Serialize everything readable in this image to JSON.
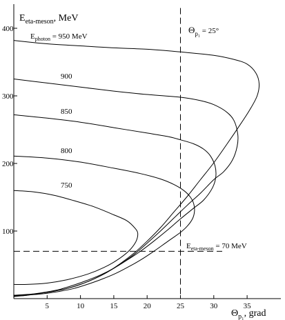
{
  "chart_data": {
    "type": "line",
    "title": {
      "main": "E",
      "sub": "eta-meson",
      "rest": ", MeV"
    },
    "xlabel": {
      "main": "Θ",
      "sub": "p₁",
      "rest": ", grad"
    },
    "xlim": [
      0,
      40
    ],
    "ylim": [
      0,
      430
    ],
    "xticks": [
      5,
      10,
      15,
      20,
      25,
      30,
      35
    ],
    "yticks": [
      100,
      200,
      300,
      400
    ],
    "grid": false,
    "series": [
      {
        "name": "950",
        "label": {
          "main": "E",
          "sub": "photon",
          "rest": " = 950 MeV"
        },
        "x": [
          0,
          5,
          10,
          15,
          20,
          25,
          30,
          33,
          35,
          36.3,
          36.8,
          36.5,
          35.5,
          34,
          32,
          30,
          28,
          26,
          24,
          22,
          20,
          18,
          16,
          14,
          12,
          10,
          8,
          6,
          4,
          2,
          0
        ],
        "y": [
          382,
          377,
          374,
          371,
          369,
          365,
          360,
          354,
          347,
          334,
          318,
          300,
          281,
          258,
          229,
          201,
          176,
          151,
          128,
          105,
          85,
          67,
          52,
          39,
          29,
          21,
          15,
          11,
          8,
          5,
          3
        ]
      },
      {
        "name": "900",
        "label": {
          "main": "900",
          "sub": "",
          "rest": ""
        },
        "x": [
          0,
          5,
          10,
          15,
          20,
          25,
          28,
          30,
          31.8,
          33,
          33.6,
          33.5,
          32.8,
          31.5,
          30,
          28,
          26,
          24,
          22,
          20,
          18,
          16,
          14,
          12,
          10,
          8,
          6,
          4,
          2,
          0
        ],
        "y": [
          325,
          319,
          313,
          307,
          302,
          298,
          293,
          287,
          277,
          264,
          243,
          225,
          205,
          188,
          176,
          156,
          138,
          119,
          100,
          82,
          65,
          51,
          39,
          29,
          21,
          15,
          11,
          8,
          5,
          4
        ]
      },
      {
        "name": "850",
        "label": {
          "main": "850",
          "sub": "",
          "rest": ""
        },
        "x": [
          0,
          5,
          10,
          15,
          20,
          23,
          25,
          27,
          28.5,
          29.5,
          30.2,
          30.3,
          29.8,
          28.5,
          27,
          25,
          23,
          21,
          19,
          17,
          15,
          13,
          11,
          9,
          7,
          5,
          3,
          0
        ],
        "y": [
          272,
          267,
          261,
          253,
          245,
          240,
          235,
          229,
          221,
          211,
          196,
          180,
          164,
          146,
          134,
          118,
          101,
          85,
          70,
          57,
          45,
          35,
          27,
          20,
          14,
          10,
          7,
          5
        ]
      },
      {
        "name": "800",
        "label": {
          "main": "800",
          "sub": "",
          "rest": ""
        },
        "x": [
          0,
          5,
          10,
          15,
          19,
          22,
          24,
          25.5,
          26.5,
          27,
          27.1,
          26.8,
          26,
          25,
          23,
          21,
          19,
          17,
          15,
          13,
          11,
          9,
          7,
          5,
          3,
          0
        ],
        "y": [
          211,
          208,
          202,
          193,
          185,
          177,
          169,
          160,
          150,
          140,
          129,
          118,
          107,
          98,
          84,
          70,
          57,
          46,
          36,
          28,
          21,
          15,
          11,
          8,
          6,
          5
        ]
      },
      {
        "name": "750",
        "label": {
          "main": "750",
          "sub": "",
          "rest": ""
        },
        "x": [
          0,
          3,
          6,
          9,
          12,
          15,
          17,
          18.2,
          18.6,
          18.3,
          17.2,
          15.5,
          13.5,
          11,
          8,
          5,
          2,
          0
        ],
        "y": [
          160,
          158,
          153,
          145,
          136,
          124,
          115,
          104,
          96,
          84,
          70,
          57,
          46,
          36,
          28,
          23,
          21,
          21
        ]
      }
    ],
    "annotations": [
      {
        "main": "Θ",
        "sub": "p₁",
        "rest": " = 25°",
        "x": 25
      },
      {
        "main": "E",
        "sub": "eta-meson",
        "rest": " = 70 MeV",
        "y": 70
      }
    ]
  }
}
